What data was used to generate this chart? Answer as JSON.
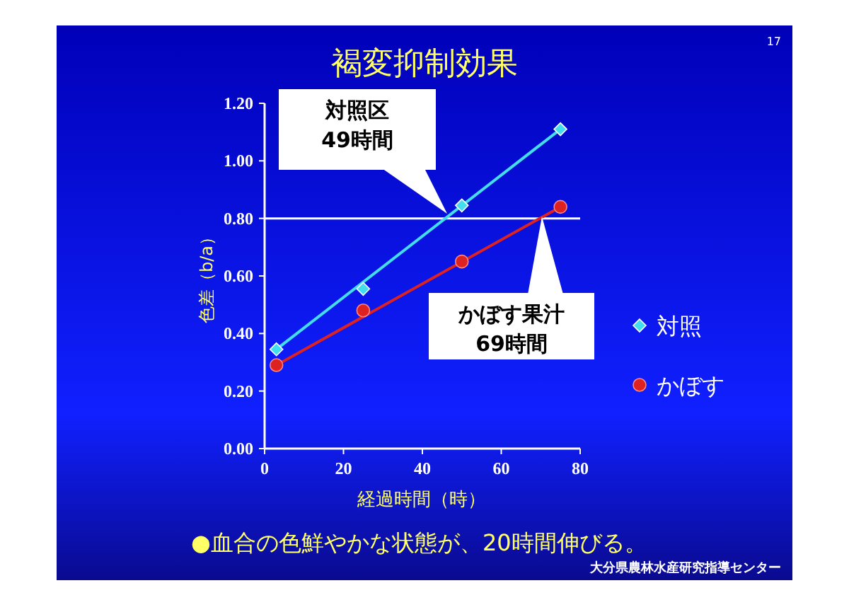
{
  "chart_data": {
    "type": "scatter",
    "title": "褐変抑制効果",
    "xlabel": "経過時間（時）",
    "ylabel": "色差（b/a）",
    "xlim": [
      0,
      80
    ],
    "xticks": [
      0,
      20,
      40,
      60,
      80
    ],
    "ylim": [
      0,
      1.2
    ],
    "yticks": [
      {
        "value": 0,
        "label": "0.00"
      },
      {
        "value": 0.2,
        "label": "0.20"
      },
      {
        "value": 0.4,
        "label": "0.40"
      },
      {
        "value": 0.6,
        "label": "0.60"
      },
      {
        "value": 0.8,
        "label": "0.80"
      },
      {
        "value": 1,
        "label": "1.00"
      },
      {
        "value": 1.2,
        "label": "1.20"
      }
    ],
    "grid": false,
    "legend": "right",
    "series": [
      {
        "name": "対照",
        "marker": "diamond",
        "color": "#44ddee",
        "x": [
          3,
          25,
          50,
          75
        ],
        "values": [
          0.345,
          0.555,
          0.845,
          1.11
        ]
      },
      {
        "name": "かぼす",
        "marker": "circle",
        "color": "#dd2222",
        "x": [
          3,
          25,
          50,
          75
        ],
        "values": [
          0.29,
          0.48,
          0.65,
          0.84
        ]
      },
      {
        "type": "line",
        "color": "#44ddee",
        "x": [
          3,
          75
        ],
        "values": [
          0.345,
          1.11
        ]
      },
      {
        "type": "line",
        "color": "#dd2222",
        "x": [
          3,
          75
        ],
        "values": [
          0.29,
          0.84
        ]
      }
    ],
    "ref_lines": [
      {
        "axis": "y",
        "value": 0.8,
        "color": "#ffffff"
      }
    ],
    "annotations": [
      "対照区\n49時間",
      "かぼす果汁\n69時間",
      "●血合の色鮮やかな状態が、20時間伸びる。",
      "大分県農林水産研究指導センター",
      "17"
    ]
  }
}
